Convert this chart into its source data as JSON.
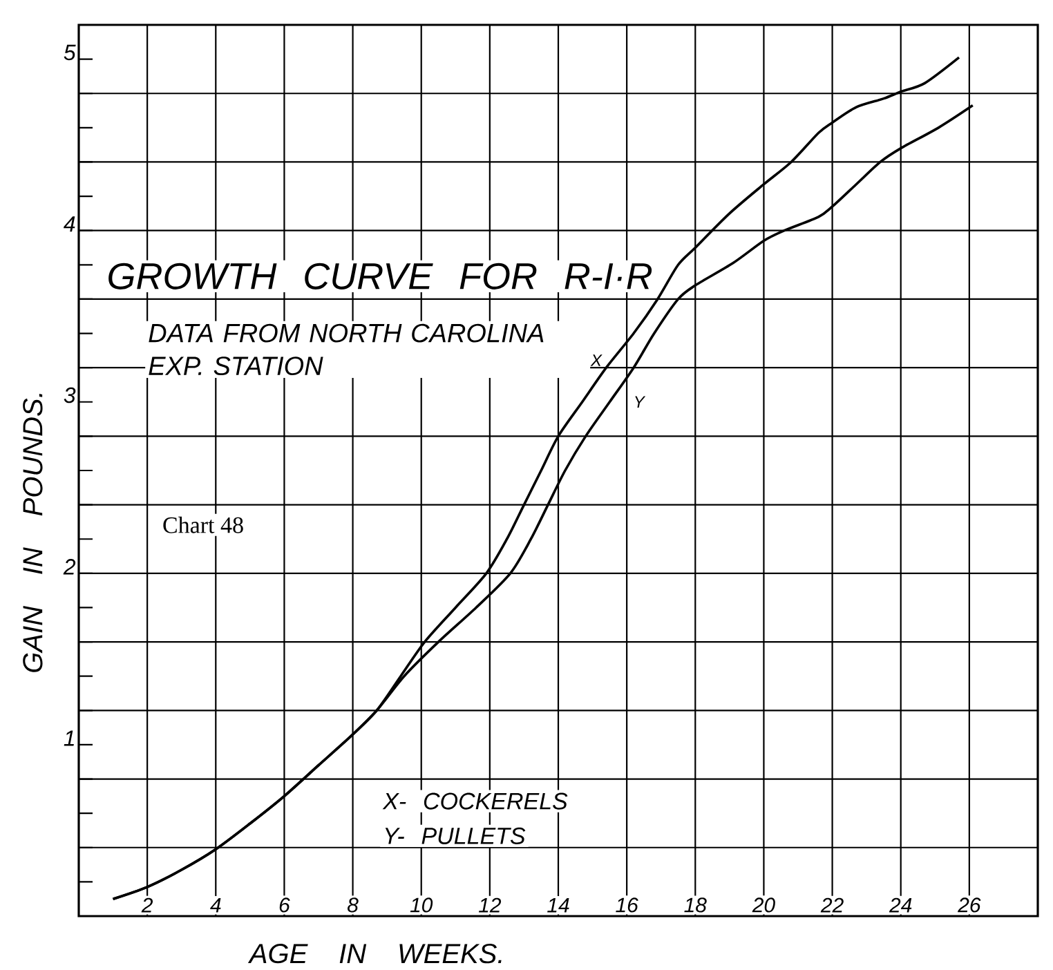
{
  "chart_data": {
    "type": "line",
    "title": "GROWTH CURVE FOR R-I·R",
    "subtitle": "DATA FROM NORTH CAROLINA EXP. STATION",
    "xlabel": "AGE IN WEEKS.",
    "ylabel": "GAIN IN POUNDS.",
    "annotations": [
      "X- COCKERELS",
      "Y- PULLETS",
      "Chart 48"
    ],
    "series": [
      {
        "name": "X",
        "color": "#000000",
        "x": [
          1,
          2,
          3,
          4,
          5,
          6,
          7,
          8,
          8.7,
          9.4,
          10.1,
          11,
          11.9,
          12.5,
          13,
          13.5,
          14,
          14.7,
          15.4,
          16.2,
          16.9,
          17.5,
          18,
          19,
          20,
          20.8,
          21.6,
          22,
          22.7,
          23.5,
          24,
          24.7,
          25.7
        ],
        "values": [
          0.1,
          0.17,
          0.27,
          0.39,
          0.54,
          0.7,
          0.88,
          1.06,
          1.2,
          1.4,
          1.6,
          1.8,
          2,
          2.2,
          2.4,
          2.6,
          2.8,
          3,
          3.2,
          3.4,
          3.6,
          3.8,
          3.9,
          4.1,
          4.27,
          4.4,
          4.57,
          4.63,
          4.72,
          4.77,
          4.81,
          4.86,
          5.01
        ]
      },
      {
        "name": "Y",
        "color": "#000000",
        "x": [
          1,
          2,
          3,
          4,
          5,
          6,
          7,
          8,
          8.7,
          9.5,
          10.5,
          11.6,
          12.6,
          13.2,
          13.7,
          14.2,
          14.8,
          15.5,
          16.2,
          16.8,
          17.5,
          18,
          19.1,
          20,
          20.6,
          21.6,
          22,
          22.7,
          23.4,
          24,
          25.1,
          26.1
        ],
        "values": [
          0.1,
          0.17,
          0.27,
          0.39,
          0.54,
          0.7,
          0.88,
          1.06,
          1.2,
          1.4,
          1.6,
          1.8,
          2,
          2.2,
          2.4,
          2.6,
          2.8,
          3,
          3.2,
          3.4,
          3.6,
          3.68,
          3.81,
          3.94,
          4,
          4.08,
          4.14,
          4.27,
          4.4,
          4.48,
          4.6,
          4.73
        ]
      }
    ],
    "xlim": [
      0,
      28
    ],
    "xticks": [
      2,
      4,
      6,
      8,
      10,
      12,
      14,
      16,
      18,
      20,
      22,
      24,
      26
    ],
    "ylim": [
      0,
      5.2
    ],
    "yticks": [
      {
        "value": 0.2,
        "label": null
      },
      {
        "value": 0.4,
        "label": null
      },
      {
        "value": 0.6,
        "label": null
      },
      {
        "value": 0.8,
        "label": null
      },
      1,
      {
        "value": 1.2,
        "label": null
      },
      {
        "value": 1.4,
        "label": null
      },
      {
        "value": 1.6,
        "label": null
      },
      {
        "value": 1.8,
        "label": null
      },
      2,
      {
        "value": 2.2,
        "label": null
      },
      {
        "value": 2.4,
        "label": null
      },
      {
        "value": 2.6,
        "label": null
      },
      {
        "value": 2.8,
        "label": null
      },
      3,
      {
        "value": 3.2,
        "label": null
      },
      {
        "value": 3.4,
        "label": null
      },
      {
        "value": 3.6,
        "label": null
      },
      {
        "value": 3.8,
        "label": null
      },
      4,
      {
        "value": 4.2,
        "label": null
      },
      {
        "value": 4.4,
        "label": null
      },
      {
        "value": 4.6,
        "label": null
      },
      {
        "value": 4.8,
        "label": null
      },
      5
    ],
    "grid": true
  }
}
